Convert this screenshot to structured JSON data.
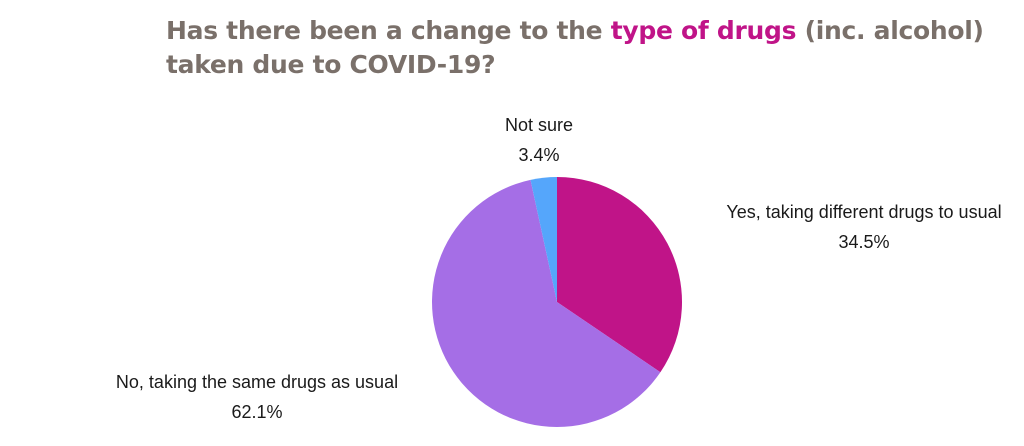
{
  "title": {
    "part1": "Has there been a change to the ",
    "highlight": "type of drugs",
    "part2": " (inc. alcohol) taken due to COVID-19?"
  },
  "colors": {
    "title": "#7a706a",
    "highlight": "#c01488"
  },
  "chart_data": {
    "type": "pie",
    "start_angle_deg": 0,
    "direction": "clockwise",
    "legend": "none",
    "slices": [
      {
        "label": "Yes, taking different drugs to usual",
        "value": 34.5,
        "value_label": "34.5%",
        "color": "#c01488"
      },
      {
        "label": "No, taking the same drugs as usual",
        "value": 62.1,
        "value_label": "62.1%",
        "color": "#a56ee6"
      },
      {
        "label": "Not sure",
        "value": 3.4,
        "value_label": "3.4%",
        "color": "#55a6fb"
      }
    ]
  }
}
